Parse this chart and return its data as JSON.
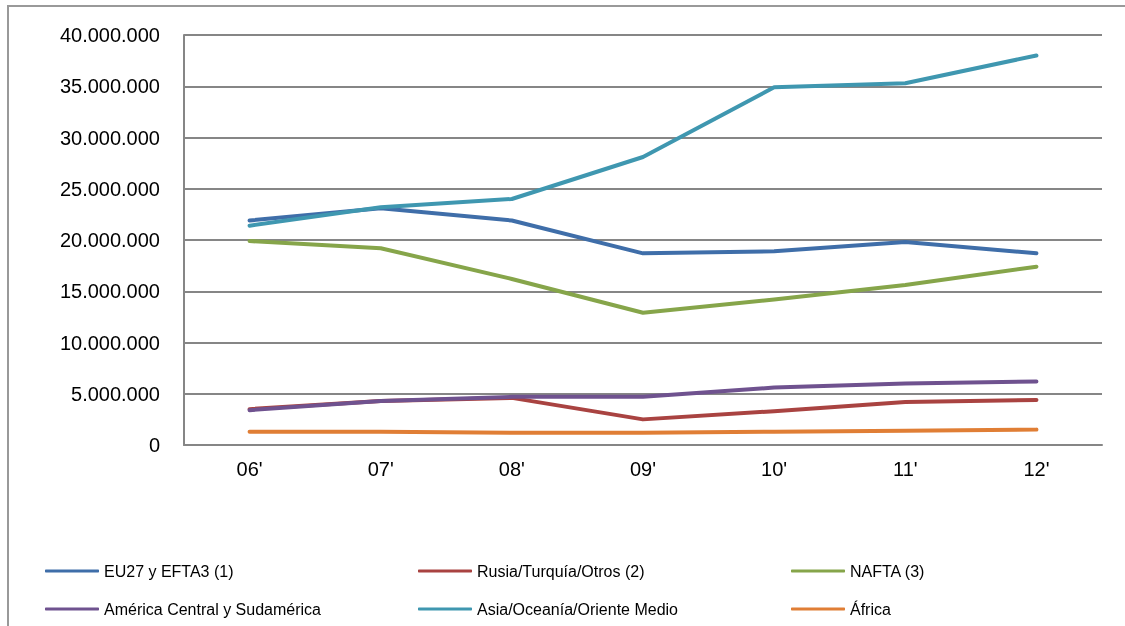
{
  "chart_data": {
    "type": "line",
    "categories": [
      "06'",
      "07'",
      "08'",
      "09'",
      "10'",
      "11'",
      "12'"
    ],
    "series": [
      {
        "name": "EU27 y EFTA3 (1)",
        "color": "#3f6ea9",
        "values": [
          21900000,
          23100000,
          21900000,
          18700000,
          18900000,
          19800000,
          18700000
        ]
      },
      {
        "name": "Rusia/Turquía/Otros (2)",
        "color": "#a94341",
        "values": [
          3500000,
          4300000,
          4600000,
          2500000,
          3300000,
          4200000,
          4400000
        ]
      },
      {
        "name": "NAFTA (3)",
        "color": "#86a54a",
        "values": [
          19900000,
          19200000,
          16200000,
          12900000,
          14200000,
          15600000,
          17400000
        ]
      },
      {
        "name": "América Central y Sudamérica",
        "color": "#6f528f",
        "values": [
          3400000,
          4300000,
          4700000,
          4700000,
          5600000,
          6000000,
          6200000
        ]
      },
      {
        "name": "Asia/Oceanía/Oriente Medio",
        "color": "#3f97b0",
        "values": [
          21400000,
          23200000,
          24000000,
          28100000,
          34900000,
          35300000,
          38000000
        ]
      },
      {
        "name": "África",
        "color": "#e07e35",
        "values": [
          1300000,
          1300000,
          1200000,
          1200000,
          1300000,
          1400000,
          1500000
        ]
      }
    ],
    "ylim": [
      0,
      40000000
    ],
    "yticks": [
      0,
      {
        "value": 5000000,
        "label": "5.000.000"
      },
      {
        "value": 10000000,
        "label": "10.000.000"
      },
      {
        "value": 15000000,
        "label": "15.000.000"
      },
      {
        "value": 20000000,
        "label": "20.000.000"
      },
      {
        "value": 25000000,
        "label": "25.000.000"
      },
      {
        "value": 30000000,
        "label": "30.000.000"
      },
      {
        "value": 35000000,
        "label": "35.000.000"
      },
      {
        "value": 40000000,
        "label": "40.000.000"
      }
    ],
    "grid": "y",
    "legend": "bottom",
    "marker": "none",
    "line_style": "solid"
  }
}
